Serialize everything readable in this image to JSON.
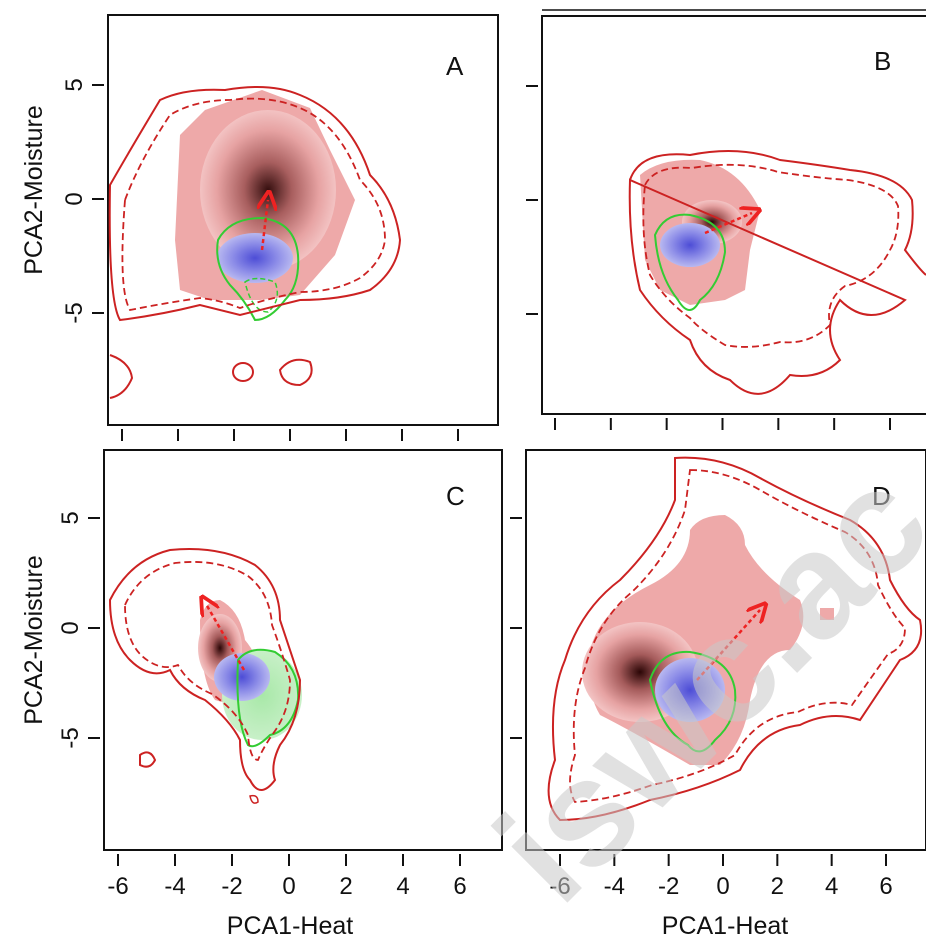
{
  "chart_data": [
    {
      "type": "heatmap",
      "panel_label": "A",
      "ylabel": "PCA2-Moisture",
      "xlim": [
        -7,
        7.5
      ],
      "ylim": [
        -9,
        8
      ],
      "x_ticks": [
        -6,
        -4,
        -2,
        0,
        2,
        4,
        6
      ],
      "y_ticks": [
        5,
        0,
        -5
      ],
      "red_density_peak": {
        "x": -1,
        "y": 0
      },
      "blue_density_peak": {
        "x": -1.5,
        "y": -3
      },
      "shift_arrow": {
        "from": [
          -1.3,
          -2.3
        ],
        "to": [
          -0.8,
          0
        ]
      }
    },
    {
      "type": "heatmap",
      "panel_label": "B",
      "xlim": [
        -7,
        7.5
      ],
      "ylim": [
        -9,
        8
      ],
      "x_ticks": [
        -6,
        -4,
        -2,
        0,
        2,
        4,
        6
      ],
      "y_ticks": [
        5,
        0,
        -5
      ],
      "red_density_peak": {
        "x": -0.7,
        "y": -1
      },
      "blue_density_peak": {
        "x": -1.8,
        "y": -2
      },
      "shift_arrow": {
        "from": [
          -1,
          -1.7
        ],
        "to": [
          1,
          -0.8
        ]
      }
    },
    {
      "type": "heatmap",
      "panel_label": "C",
      "xlabel": "PCA1-Heat",
      "ylabel": "PCA2-Moisture",
      "xlim": [
        -7,
        7.5
      ],
      "ylim": [
        -9,
        8
      ],
      "x_ticks": [
        -6,
        -4,
        -2,
        0,
        2,
        4,
        6
      ],
      "y_ticks": [
        5,
        0,
        -5
      ],
      "red_density_peak": {
        "x": -2.2,
        "y": -0.8
      },
      "blue_density_peak": {
        "x": -1.5,
        "y": -2.5
      },
      "shift_arrow": {
        "from": [
          -1.5,
          -2.4
        ],
        "to": [
          -3,
          1.2
        ]
      }
    },
    {
      "type": "heatmap",
      "panel_label": "D",
      "xlabel": "PCA1-Heat",
      "xlim": [
        -7,
        7.5
      ],
      "ylim": [
        -9,
        8
      ],
      "x_ticks": [
        -6,
        -4,
        -2,
        0,
        2,
        4,
        6
      ],
      "y_ticks": [
        5,
        0,
        -5
      ],
      "red_density_peak": {
        "x": -2.5,
        "y": -2.2
      },
      "blue_density_peak": {
        "x": -1.2,
        "y": -2.5
      },
      "shift_arrow": {
        "from": [
          -1.2,
          -2.2
        ],
        "to": [
          1.3,
          0.8
        ]
      }
    }
  ],
  "colors": {
    "red_density": "#e8a0a0",
    "red_density_peak": "#3a0808",
    "blue_density": "#7c7ce6",
    "green_contour": "#33cc33",
    "red_contour": "#cc2222",
    "arrow": "#ee2222"
  },
  "watermark": "iswc.ac"
}
